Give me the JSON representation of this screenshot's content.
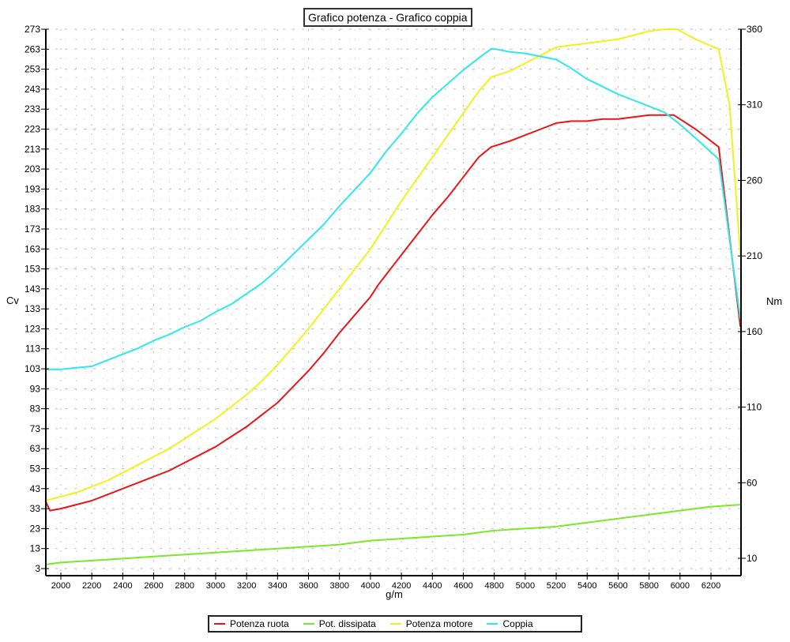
{
  "title": "Grafico potenza - Grafico coppia",
  "axes": {
    "left_label": "Cv",
    "right_label": "Nm",
    "x_label": "g/m",
    "left_ticks": [
      273,
      263,
      253,
      243,
      233,
      223,
      213,
      203,
      193,
      183,
      173,
      163,
      153,
      143,
      133,
      123,
      113,
      103,
      93,
      83,
      73,
      63,
      53,
      43,
      33,
      23,
      13,
      3
    ],
    "right_ticks": [
      360,
      310,
      260,
      210,
      160,
      110,
      60,
      10
    ],
    "x_ticks": [
      2000,
      2200,
      2400,
      2600,
      2800,
      3000,
      3200,
      3400,
      3600,
      3800,
      4000,
      4200,
      4400,
      4600,
      4800,
      5000,
      5200,
      5400,
      5600,
      5800,
      6000,
      6200
    ]
  },
  "legend": [
    {
      "label": "Potenza ruota",
      "color": "#e8161b"
    },
    {
      "label": "Pot. dissipata",
      "color": "#7be82a"
    },
    {
      "label": "Potenza motore",
      "color": "#f4f01c"
    },
    {
      "label": "Coppia",
      "color": "#2ee8ee"
    }
  ],
  "chart_data": {
    "type": "line",
    "title": "Grafico potenza - Grafico coppia",
    "xlabel": "g/m",
    "ylabel": "Cv",
    "ylabel_right": "Nm",
    "xlim": [
      1900,
      6390
    ],
    "ylim": [
      0,
      273
    ],
    "ylim_right": [
      5,
      360
    ],
    "grid": true,
    "legend_position": "bottom",
    "series": [
      {
        "name": "Potenza ruota",
        "axis": "left",
        "color": "#e8161b",
        "x": [
          1900,
          1930,
          2000,
          2100,
          2200,
          2300,
          2400,
          2500,
          2600,
          2700,
          2800,
          2900,
          3000,
          3100,
          3200,
          3300,
          3400,
          3500,
          3600,
          3700,
          3800,
          3900,
          4000,
          4050,
          4100,
          4200,
          4300,
          4400,
          4500,
          4600,
          4700,
          4780,
          4900,
          5000,
          5100,
          5200,
          5300,
          5400,
          5500,
          5600,
          5700,
          5800,
          5900,
          5960,
          6100,
          6250,
          6390
        ],
        "values": [
          37,
          32,
          33,
          35,
          37,
          40,
          43,
          46,
          49,
          52,
          56,
          60,
          64,
          69,
          74,
          80,
          86,
          94,
          102,
          111,
          121,
          130,
          139,
          145,
          150,
          160,
          170,
          180,
          189,
          199,
          209,
          214,
          217,
          220,
          223,
          226,
          227,
          227,
          228,
          228,
          229,
          230,
          230,
          230,
          223,
          214,
          124
        ]
      },
      {
        "name": "Pot. dissipata",
        "axis": "left",
        "color": "#7be82a",
        "x": [
          1900,
          2000,
          2200,
          2400,
          2600,
          2800,
          3000,
          3200,
          3400,
          3600,
          3800,
          4000,
          4200,
          4400,
          4600,
          4800,
          5000,
          5200,
          5400,
          5600,
          5800,
          6000,
          6200,
          6390
        ],
        "values": [
          5,
          6,
          7,
          8,
          9,
          10,
          11,
          12,
          13,
          14,
          15,
          17,
          18,
          19,
          20,
          22,
          23,
          24,
          26,
          28,
          30,
          32,
          34,
          35
        ]
      },
      {
        "name": "Potenza motore",
        "axis": "left",
        "color": "#f4f01c",
        "x": [
          1900,
          2000,
          2100,
          2200,
          2300,
          2400,
          2500,
          2600,
          2700,
          2800,
          2900,
          3000,
          3100,
          3200,
          3300,
          3400,
          3500,
          3600,
          3700,
          3800,
          3900,
          4000,
          4100,
          4200,
          4300,
          4400,
          4500,
          4600,
          4700,
          4780,
          4900,
          5000,
          5100,
          5200,
          5300,
          5400,
          5500,
          5600,
          5700,
          5800,
          5900,
          5980,
          6100,
          6250,
          6320,
          6390
        ],
        "values": [
          37,
          39,
          41,
          44,
          47,
          51,
          55,
          59,
          63,
          68,
          73,
          78,
          84,
          90,
          97,
          105,
          114,
          123,
          133,
          143,
          153,
          163,
          175,
          187,
          198,
          209,
          220,
          231,
          242,
          249,
          252,
          256,
          260,
          264,
          265,
          266,
          267,
          268,
          270,
          272,
          273,
          273,
          268,
          263,
          235,
          160
        ]
      },
      {
        "name": "Coppia",
        "axis": "right",
        "color": "#2ee8ee",
        "x": [
          1900,
          2000,
          2100,
          2200,
          2300,
          2400,
          2500,
          2600,
          2700,
          2800,
          2900,
          3000,
          3100,
          3200,
          3300,
          3400,
          3500,
          3600,
          3700,
          3800,
          3900,
          4000,
          4100,
          4200,
          4300,
          4400,
          4500,
          4600,
          4700,
          4780,
          4800,
          4900,
          5000,
          5100,
          5200,
          5300,
          5400,
          5500,
          5600,
          5700,
          5800,
          5900,
          6000,
          6100,
          6250,
          6390
        ],
        "values": [
          135,
          135,
          136,
          137,
          141,
          145,
          149,
          154,
          158,
          163,
          167,
          173,
          178,
          185,
          192,
          201,
          211,
          221,
          231,
          243,
          254,
          265,
          279,
          291,
          304,
          315,
          324,
          333,
          341,
          347,
          347,
          345,
          344,
          342,
          340,
          334,
          327,
          322,
          317,
          313,
          309,
          305,
          297,
          288,
          274,
          168
        ]
      }
    ]
  }
}
